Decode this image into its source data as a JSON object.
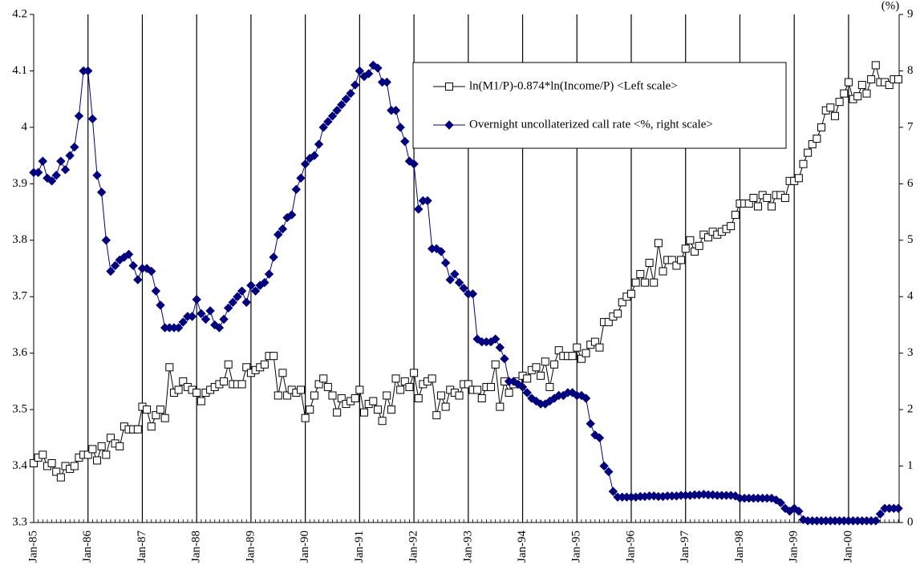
{
  "chart_data": {
    "type": "line",
    "y2_unit_label": "(%)",
    "categories": [
      "Jan-85",
      null,
      null,
      null,
      null,
      null,
      null,
      null,
      null,
      null,
      null,
      null,
      "Jan-86",
      null,
      null,
      null,
      null,
      null,
      null,
      null,
      null,
      null,
      null,
      null,
      "Jan-87",
      null,
      null,
      null,
      null,
      null,
      null,
      null,
      null,
      null,
      null,
      null,
      "Jan-88",
      null,
      null,
      null,
      null,
      null,
      null,
      null,
      null,
      null,
      null,
      null,
      "Jan-89",
      null,
      null,
      null,
      null,
      null,
      null,
      null,
      null,
      null,
      null,
      null,
      "Jan-90",
      null,
      null,
      null,
      null,
      null,
      null,
      null,
      null,
      null,
      null,
      null,
      "Jan-91",
      null,
      null,
      null,
      null,
      null,
      null,
      null,
      null,
      null,
      null,
      null,
      "Jan-92",
      null,
      null,
      null,
      null,
      null,
      null,
      null,
      null,
      null,
      null,
      null,
      "Jan-93",
      null,
      null,
      null,
      null,
      null,
      null,
      null,
      null,
      null,
      null,
      null,
      "Jan-94",
      null,
      null,
      null,
      null,
      null,
      null,
      null,
      null,
      null,
      null,
      null,
      "Jan-95",
      null,
      null,
      null,
      null,
      null,
      null,
      null,
      null,
      null,
      null,
      null,
      "Jan-96",
      null,
      null,
      null,
      null,
      null,
      null,
      null,
      null,
      null,
      null,
      null,
      "Jan-97",
      null,
      null,
      null,
      null,
      null,
      null,
      null,
      null,
      null,
      null,
      null,
      "Jan-98",
      null,
      null,
      null,
      null,
      null,
      null,
      null,
      null,
      null,
      null,
      null,
      "Jan-99",
      null,
      null,
      null,
      null,
      null,
      null,
      null,
      null,
      null,
      null,
      null,
      "Jan-00",
      null,
      null,
      null,
      null,
      null,
      null,
      null,
      null,
      null,
      null,
      null
    ],
    "series": [
      {
        "name": "ln(M1/P)-0.874*ln(Income/P) <Left scale>",
        "color": "#000000",
        "marker": "square",
        "values": [
          3.405,
          3.415,
          3.42,
          3.4,
          3.405,
          3.39,
          3.38,
          3.4,
          3.395,
          3.4,
          3.415,
          3.42,
          3.42,
          3.43,
          3.41,
          3.435,
          3.42,
          3.45,
          3.44,
          3.435,
          3.47,
          3.465,
          3.465,
          3.465,
          3.505,
          3.5,
          3.47,
          3.49,
          3.5,
          3.485,
          3.575,
          3.53,
          3.535,
          3.55,
          3.54,
          3.535,
          3.53,
          3.515,
          3.53,
          3.535,
          3.54,
          3.545,
          3.55,
          3.58,
          3.545,
          3.545,
          3.545,
          3.575,
          3.565,
          3.57,
          3.575,
          3.58,
          3.595,
          3.595,
          3.525,
          3.565,
          3.525,
          3.535,
          3.53,
          3.535,
          3.485,
          3.5,
          3.525,
          3.545,
          3.555,
          3.54,
          3.525,
          3.495,
          3.52,
          3.51,
          3.515,
          3.52,
          3.535,
          3.495,
          3.51,
          3.515,
          3.5,
          3.48,
          3.525,
          3.5,
          3.555,
          3.535,
          3.55,
          3.54,
          3.565,
          3.52,
          3.545,
          3.55,
          3.555,
          3.49,
          3.525,
          3.505,
          3.535,
          3.53,
          3.525,
          3.545,
          3.545,
          3.535,
          3.535,
          3.52,
          3.54,
          3.54,
          3.58,
          3.505,
          3.55,
          3.53,
          3.545,
          3.55,
          3.56,
          3.555,
          3.57,
          3.575,
          3.56,
          3.585,
          3.54,
          3.58,
          3.605,
          3.595,
          3.595,
          3.595,
          3.61,
          3.59,
          3.6,
          3.615,
          3.62,
          3.61,
          3.655,
          3.655,
          3.665,
          3.67,
          3.69,
          3.7,
          3.705,
          3.725,
          3.74,
          3.725,
          3.76,
          3.725,
          3.795,
          3.745,
          3.765,
          3.765,
          3.755,
          3.765,
          3.785,
          3.8,
          3.78,
          3.79,
          3.81,
          3.805,
          3.815,
          3.81,
          3.815,
          3.82,
          3.825,
          3.845,
          3.865,
          3.865,
          3.865,
          3.875,
          3.86,
          3.88,
          3.875,
          3.86,
          3.88,
          3.88,
          3.875,
          3.905,
          3.905,
          3.91,
          3.935,
          3.955,
          3.97,
          3.98,
          4.0,
          4.03,
          4.035,
          4.02,
          4.045,
          4.06,
          4.08,
          4.05,
          4.055,
          4.075,
          4.06,
          4.085,
          4.11,
          4.08,
          4.08,
          4.075,
          4.085,
          4.085
        ]
      },
      {
        "name": "Overnight uncollaterized call rate <%, right scale>",
        "color": "#000080",
        "marker": "diamond",
        "axis": "y2",
        "values": [
          6.2,
          6.2,
          6.4,
          6.1,
          6.05,
          6.15,
          6.4,
          6.25,
          6.5,
          6.65,
          7.2,
          8.0,
          8.0,
          7.15,
          6.15,
          5.85,
          5.0,
          4.45,
          4.55,
          4.65,
          4.7,
          4.75,
          4.55,
          4.3,
          4.5,
          4.5,
          4.45,
          4.1,
          3.85,
          3.45,
          3.45,
          3.45,
          3.45,
          3.55,
          3.65,
          3.65,
          3.95,
          3.7,
          3.6,
          3.75,
          3.5,
          3.45,
          3.6,
          3.8,
          3.9,
          4.0,
          4.1,
          3.9,
          4.2,
          4.1,
          4.2,
          4.25,
          4.4,
          4.7,
          5.1,
          5.2,
          5.4,
          5.45,
          5.9,
          6.1,
          6.35,
          6.45,
          6.5,
          6.7,
          7.0,
          7.1,
          7.2,
          7.3,
          7.4,
          7.5,
          7.6,
          7.75,
          8.0,
          7.9,
          7.95,
          8.1,
          8.05,
          7.8,
          7.8,
          7.3,
          7.3,
          7.0,
          6.75,
          6.4,
          6.35,
          5.55,
          5.7,
          5.7,
          4.85,
          4.85,
          4.8,
          4.6,
          4.3,
          4.4,
          4.25,
          4.15,
          4.05,
          4.05,
          3.25,
          3.2,
          3.2,
          3.2,
          3.25,
          3.1,
          2.9,
          2.5,
          2.5,
          2.45,
          2.4,
          2.3,
          2.2,
          2.15,
          2.1,
          2.1,
          2.15,
          2.2,
          2.25,
          2.25,
          2.3,
          2.3,
          2.25,
          2.25,
          2.2,
          1.75,
          1.55,
          1.5,
          1.0,
          0.9,
          0.55,
          0.45,
          0.45,
          0.45,
          0.45,
          0.45,
          0.46,
          0.46,
          0.47,
          0.47,
          0.46,
          0.46,
          0.47,
          0.47,
          0.47,
          0.48,
          0.48,
          0.48,
          0.49,
          0.49,
          0.5,
          0.49,
          0.49,
          0.48,
          0.48,
          0.48,
          0.48,
          0.47,
          0.43,
          0.43,
          0.43,
          0.43,
          0.43,
          0.43,
          0.43,
          0.43,
          0.4,
          0.35,
          0.25,
          0.2,
          0.25,
          0.2,
          0.05,
          0.03,
          0.03,
          0.03,
          0.03,
          0.03,
          0.03,
          0.03,
          0.03,
          0.03,
          0.03,
          0.03,
          0.03,
          0.03,
          0.03,
          0.03,
          0.03,
          0.15,
          0.25,
          0.25,
          0.25,
          0.25
        ]
      }
    ],
    "ylim": [
      3.3,
      4.2
    ],
    "yticks": [
      3.3,
      3.4,
      3.5,
      3.6,
      3.7,
      3.8,
      3.9,
      4,
      4.1,
      4.2
    ],
    "y2lim": [
      0,
      9
    ],
    "y2ticks": [
      0,
      1,
      2,
      3,
      4,
      5,
      6,
      7,
      8,
      9
    ],
    "grid": "vertical-at-labels",
    "legend_position": "upper right"
  }
}
